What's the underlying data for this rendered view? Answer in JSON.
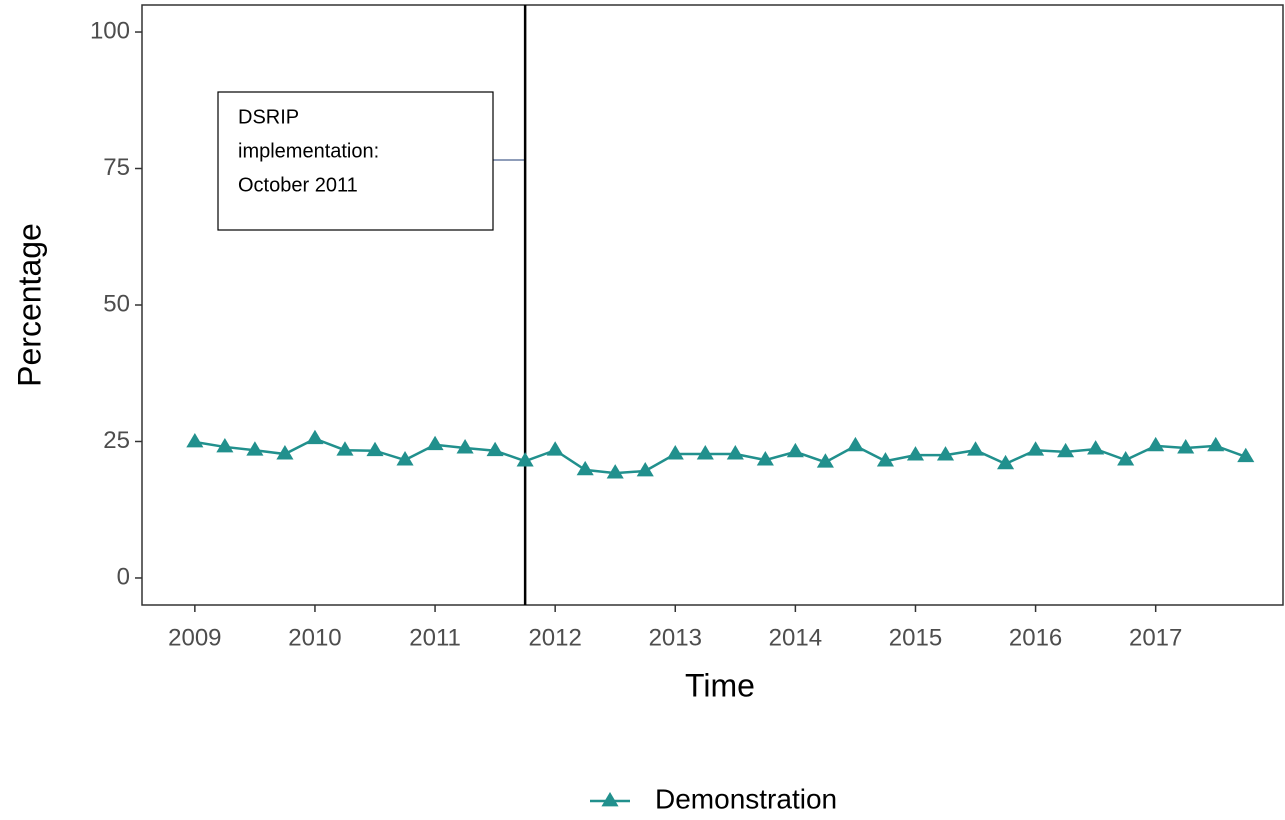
{
  "chart_data": {
    "type": "line",
    "x": [
      2009,
      2009.25,
      2009.5,
      2009.75,
      2010,
      2010.25,
      2010.5,
      2010.75,
      2011,
      2011.25,
      2011.5,
      2011.75,
      2012,
      2012.25,
      2012.5,
      2012.75,
      2013,
      2013.25,
      2013.5,
      2013.75,
      2014,
      2014.25,
      2014.5,
      2014.75,
      2015,
      2015.25,
      2015.5,
      2015.75,
      2016,
      2016.25,
      2016.5,
      2016.75,
      2017,
      2017.25,
      2017.5,
      2017.75
    ],
    "series": [
      {
        "name": "Demonstration",
        "color": "#21908d",
        "values": [
          24.9,
          24.0,
          23.4,
          22.7,
          25.5,
          23.4,
          23.3,
          21.6,
          24.4,
          23.8,
          23.3,
          21.4,
          23.4,
          19.8,
          19.2,
          19.6,
          22.7,
          22.7,
          22.7,
          21.6,
          23.1,
          21.2,
          24.2,
          21.4,
          22.5,
          22.5,
          23.4,
          20.9,
          23.4,
          23.1,
          23.6,
          21.6,
          24.2,
          23.8,
          24.2,
          22.2
        ]
      }
    ],
    "xlim": [
      2008.56,
      2018.06
    ],
    "xticks": [
      2009,
      2010,
      2011,
      2012,
      2013,
      2014,
      2015,
      2016,
      2017
    ],
    "ylim": [
      -4.95,
      104.95
    ],
    "yticks": [
      0,
      25,
      50,
      75,
      100
    ],
    "x_label": "Time",
    "y_label": "Percentage",
    "vline": 2011.75,
    "annotation": [
      "DSRIP",
      "implementation:",
      "October 2011"
    ],
    "legend": "bottom"
  }
}
